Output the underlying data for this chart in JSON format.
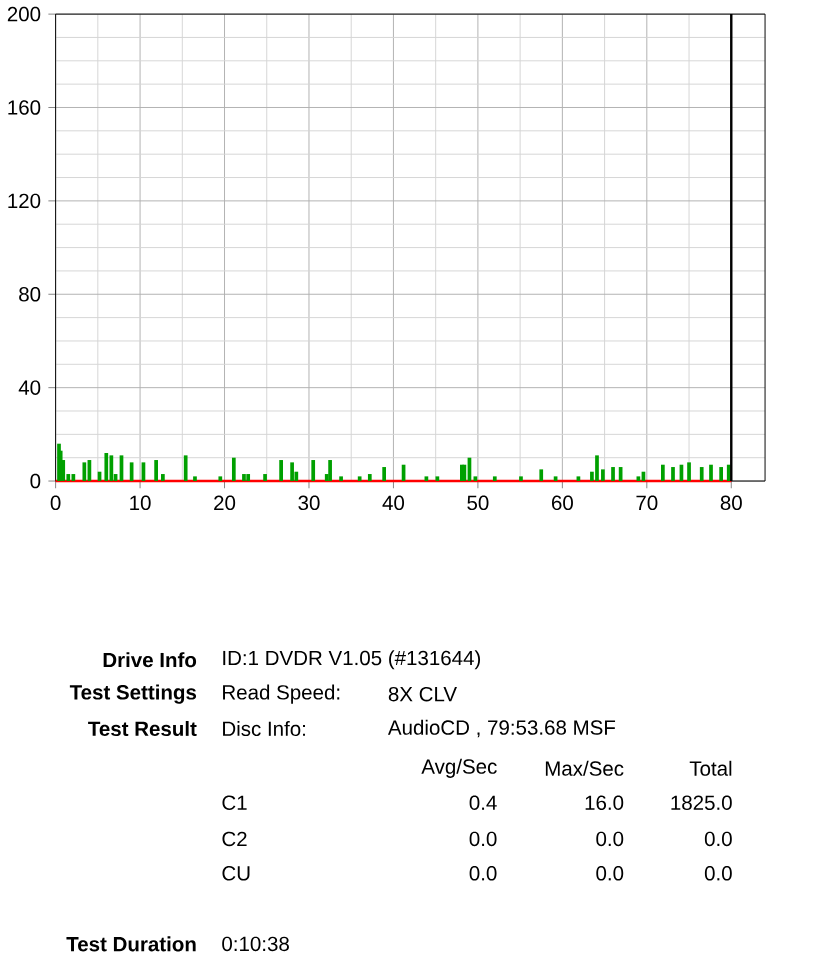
{
  "chart_data": [
    {
      "type": "bar",
      "xlim": [
        0,
        84
      ],
      "ylim": [
        0,
        200
      ],
      "xticks": [
        0,
        10,
        20,
        30,
        40,
        50,
        60,
        70,
        80
      ],
      "yticks": [
        0,
        40,
        80,
        120,
        160,
        200
      ],
      "grid": true,
      "series": [
        {
          "type": "bar",
          "color": "#00a000",
          "x": [
            0.4,
            0.6,
            0.9,
            1.5,
            2.1,
            3.4,
            4.0,
            5.2,
            6.0,
            6.6,
            7.1,
            7.8,
            9.0,
            10.4,
            11.9,
            12.7,
            15.4,
            16.5,
            19.5,
            21.1,
            22.3,
            22.8,
            24.8,
            26.7,
            28.0,
            28.5,
            30.5,
            32.1,
            32.5,
            33.8,
            36.0,
            37.2,
            38.9,
            41.2,
            43.9,
            45.2,
            48.1,
            48.4,
            49.0,
            49.7,
            52.0,
            55.1,
            57.5,
            59.2,
            61.9,
            63.5,
            64.1,
            64.8,
            66.0,
            66.9,
            69.0,
            69.6,
            71.9,
            73.1,
            74.1,
            75.0,
            76.5,
            77.6,
            78.8,
            79.7
          ],
          "values": [
            16,
            13,
            9,
            3,
            3,
            8,
            9,
            4,
            12,
            11,
            3,
            11,
            8,
            8,
            9,
            3,
            11,
            2,
            2,
            10,
            3,
            3,
            3,
            9,
            8,
            4,
            9,
            3,
            9,
            2,
            2,
            3,
            6,
            7,
            2,
            2,
            7,
            7,
            10,
            2,
            2,
            2,
            5,
            2,
            2,
            4,
            11,
            5,
            6,
            6,
            2,
            4,
            7,
            6,
            7,
            8,
            6,
            7,
            6,
            7
          ]
        },
        {
          "type": "line",
          "color": "#ff0000",
          "x": [
            0,
            80
          ],
          "values": [
            0,
            0
          ]
        }
      ],
      "ref_lines": [
        {
          "axis": "x",
          "value": 80,
          "color": "#000000"
        }
      ]
    },
    {
      "type": "other",
      "annotations": [
        "Drive Info",
        "ID:1 DVDR V1.05 (#131644)",
        "Test Settings",
        "Read Speed:",
        "8X CLV",
        "Test Result",
        "Disc Info:",
        "AudioCD , 79:53.68 MSF",
        "Avg/Sec",
        "Max/Sec",
        "Total",
        "C1",
        "0.4",
        "16.0",
        "1825.0",
        "C2",
        "0.0",
        "0.0",
        "0.0",
        "CU",
        "0.0",
        "0.0",
        "0.0",
        "Test Duration",
        "0:10:38"
      ]
    }
  ]
}
